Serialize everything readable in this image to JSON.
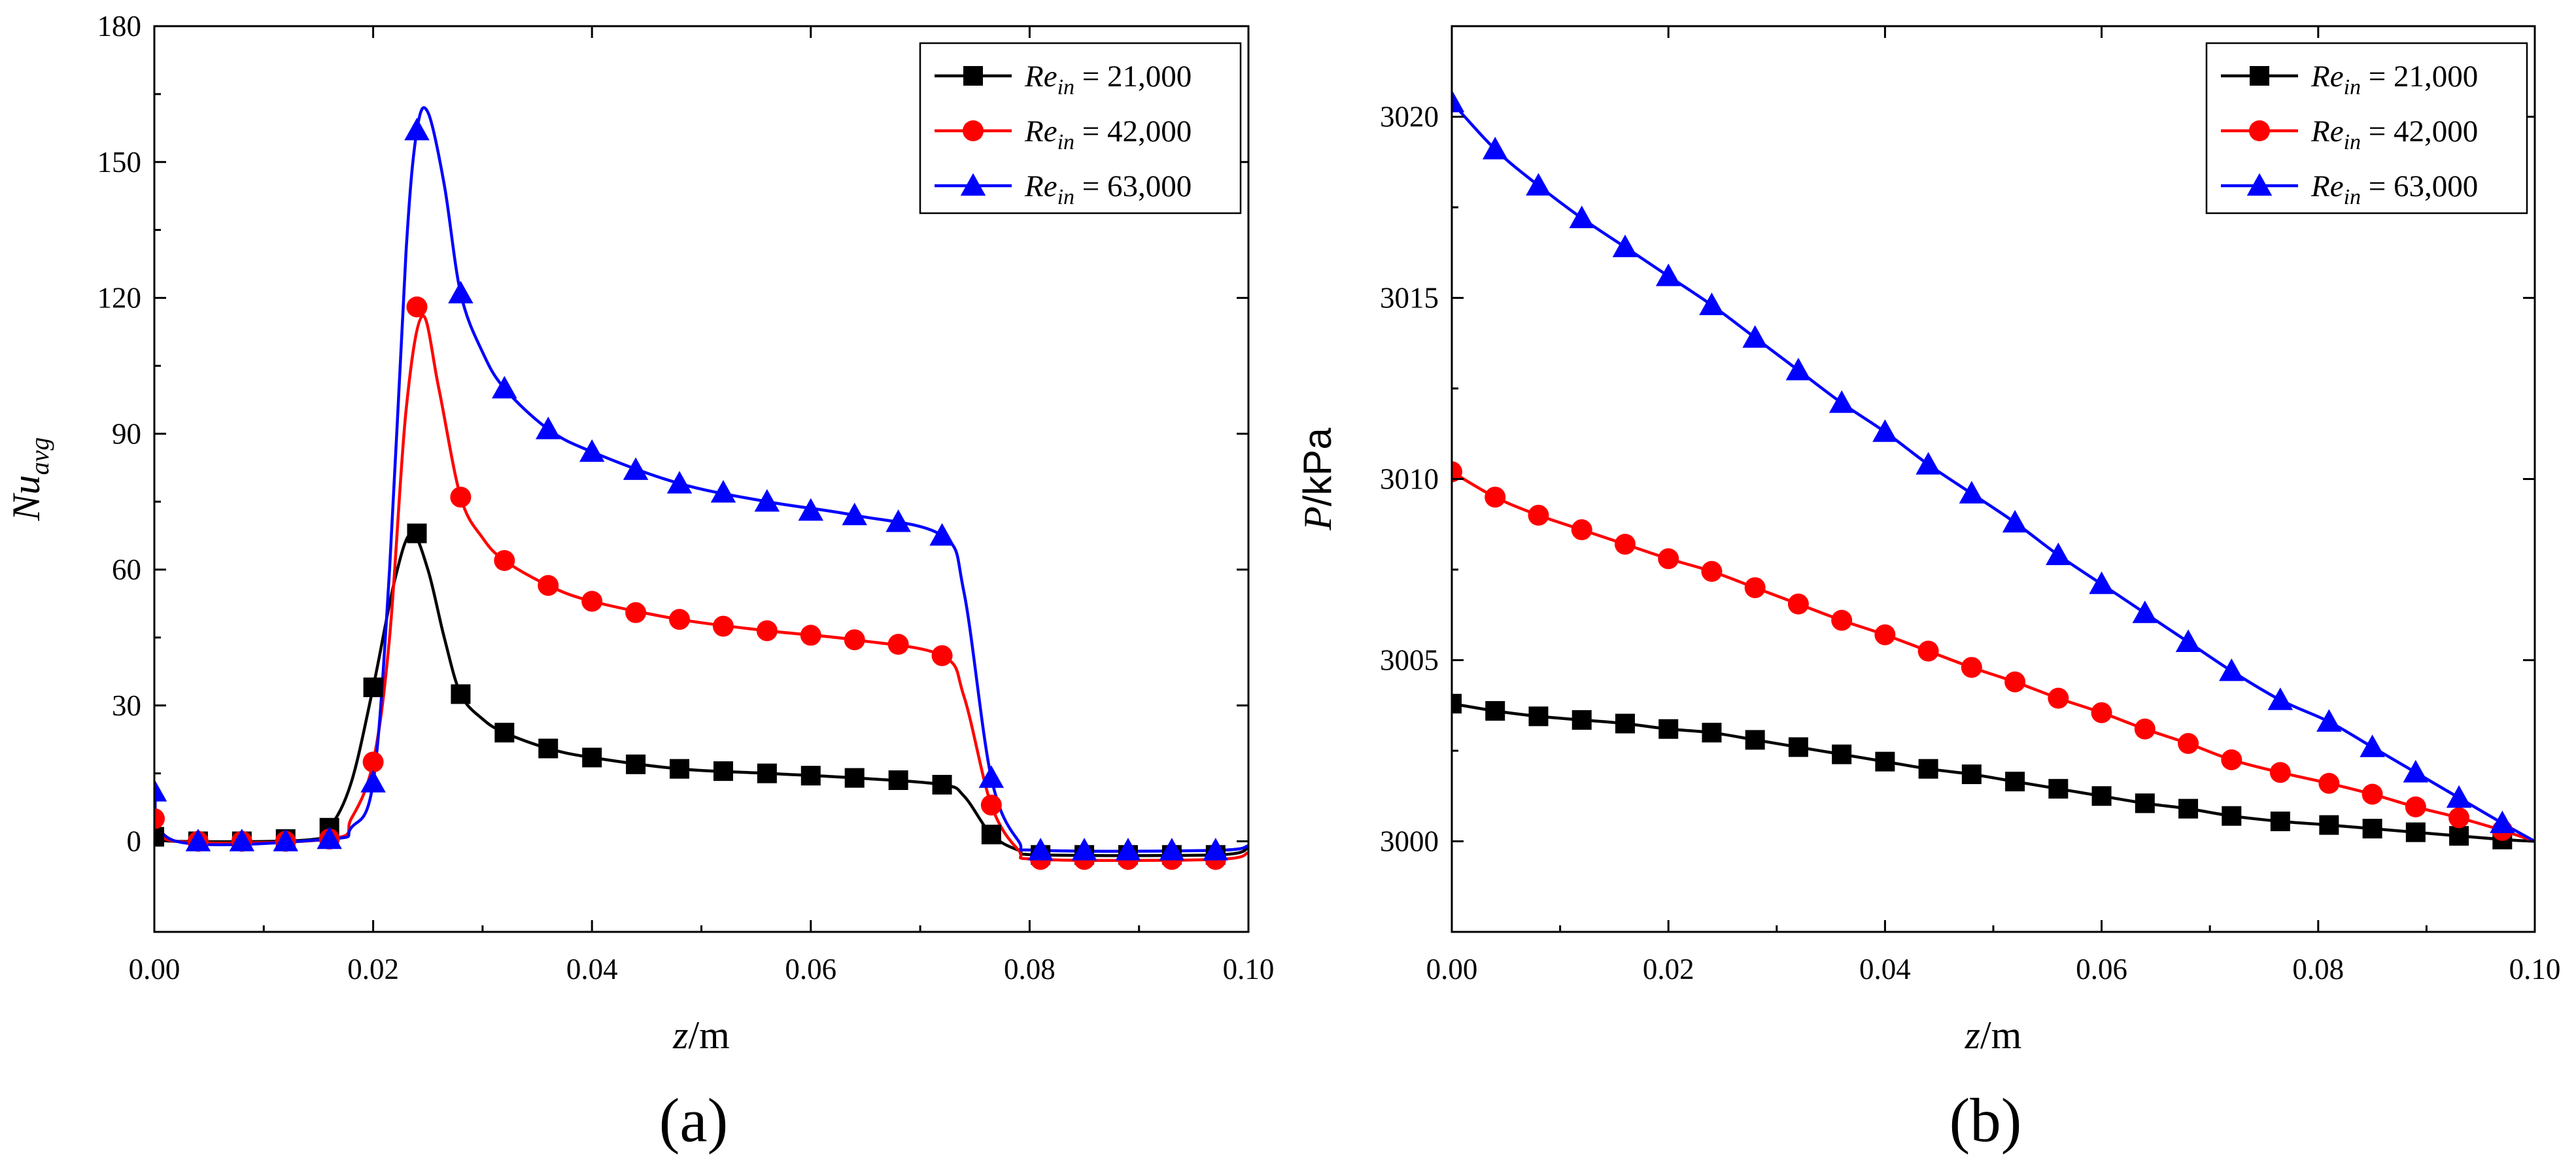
{
  "chart_data": [
    {
      "type": "line",
      "panel_label": "(a)",
      "xlabel": "z/m",
      "xlabel_parts": {
        "var": "z",
        "unit": "/m"
      },
      "ylabel": "Nu_avg",
      "ylabel_parts": {
        "main": "Nu",
        "sub": "avg"
      },
      "xlim": [
        0,
        0.1
      ],
      "ylim": [
        -20,
        180
      ],
      "xticks": [
        0,
        0.02,
        0.04,
        0.06,
        0.08,
        0.1
      ],
      "xtick_labels": [
        "0.00",
        "0.02",
        "0.04",
        "0.06",
        "0.08",
        "0.10"
      ],
      "yticks": [
        0,
        30,
        60,
        90,
        120,
        150,
        180
      ],
      "ytick_labels": [
        "0",
        "30",
        "60",
        "90",
        "120",
        "150",
        "180"
      ],
      "legend_position": "top-right",
      "series": [
        {
          "name": "Re_in = 21,000",
          "label_main": "Re",
          "label_sub": "in",
          "label_value": " = 21,000",
          "color": "#000000",
          "marker": "square",
          "x": [
            0.0,
            0.004,
            0.008,
            0.012,
            0.016,
            0.02,
            0.024,
            0.028,
            0.032,
            0.036,
            0.04,
            0.044,
            0.048,
            0.052,
            0.056,
            0.06,
            0.064,
            0.068,
            0.072,
            0.0765,
            0.081,
            0.085,
            0.089,
            0.093,
            0.097
          ],
          "y": [
            1,
            0,
            0,
            0.5,
            3,
            34,
            68,
            32.5,
            24,
            20.5,
            18.5,
            17,
            16,
            15.5,
            15,
            14.5,
            14,
            13.5,
            12.5,
            1.5,
            -3,
            -3,
            -3,
            -3,
            -3
          ],
          "curve": [
            [
              0,
              1
            ],
            [
              0.002,
              0
            ],
            [
              0.014,
              0.3
            ],
            [
              0.016,
              3
            ],
            [
              0.018,
              13
            ],
            [
              0.02,
              34
            ],
            [
              0.022,
              58
            ],
            [
              0.0235,
              68
            ],
            [
              0.025,
              60
            ],
            [
              0.0265,
              45
            ],
            [
              0.028,
              32.5
            ],
            [
              0.03,
              27
            ],
            [
              0.032,
              24
            ],
            [
              0.036,
              20.5
            ],
            [
              0.04,
              18.5
            ],
            [
              0.048,
              16
            ],
            [
              0.056,
              15
            ],
            [
              0.064,
              14
            ],
            [
              0.072,
              12.5
            ],
            [
              0.074,
              10
            ],
            [
              0.0765,
              1.5
            ],
            [
              0.079,
              -2
            ],
            [
              0.081,
              -3
            ],
            [
              0.097,
              -3
            ],
            [
              0.1,
              -1.5
            ]
          ]
        },
        {
          "name": "Re_in = 42,000",
          "label_main": "Re",
          "label_sub": "in",
          "label_value": " = 42,000",
          "color": "#ff0000",
          "marker": "circle",
          "x": [
            0.0,
            0.004,
            0.008,
            0.012,
            0.016,
            0.02,
            0.024,
            0.028,
            0.032,
            0.036,
            0.04,
            0.044,
            0.048,
            0.052,
            0.056,
            0.06,
            0.064,
            0.068,
            0.072,
            0.0765,
            0.081,
            0.085,
            0.089,
            0.093,
            0.097
          ],
          "y": [
            5,
            0,
            0,
            0,
            0.5,
            17.5,
            118,
            76,
            62,
            56.5,
            53,
            50.5,
            49,
            47.5,
            46.5,
            45.5,
            44.5,
            43.5,
            41,
            8,
            -4,
            -4,
            -4,
            -4,
            -4
          ],
          "curve": [
            [
              0,
              5
            ],
            [
              0.002,
              0
            ],
            [
              0.016,
              0.5
            ],
            [
              0.018,
              5
            ],
            [
              0.02,
              17.5
            ],
            [
              0.0215,
              45
            ],
            [
              0.023,
              95
            ],
            [
              0.0245,
              116
            ],
            [
              0.026,
              100
            ],
            [
              0.028,
              76
            ],
            [
              0.03,
              67
            ],
            [
              0.032,
              62
            ],
            [
              0.036,
              56.5
            ],
            [
              0.04,
              53
            ],
            [
              0.048,
              49
            ],
            [
              0.056,
              46.5
            ],
            [
              0.064,
              44.5
            ],
            [
              0.072,
              41
            ],
            [
              0.074,
              32
            ],
            [
              0.0765,
              8
            ],
            [
              0.079,
              -2
            ],
            [
              0.081,
              -4
            ],
            [
              0.097,
              -4
            ],
            [
              0.1,
              -2.5
            ]
          ]
        },
        {
          "name": "Re_in = 63,000",
          "label_main": "Re",
          "label_sub": "in",
          "label_value": " = 63,000",
          "color": "#0000ff",
          "marker": "triangle",
          "x": [
            0.0,
            0.004,
            0.008,
            0.012,
            0.016,
            0.02,
            0.024,
            0.028,
            0.032,
            0.036,
            0.04,
            0.044,
            0.048,
            0.052,
            0.056,
            0.06,
            0.064,
            0.068,
            0.072,
            0.0765,
            0.081,
            0.085,
            0.089,
            0.093,
            0.097
          ],
          "y": [
            11,
            0,
            0,
            0,
            0.5,
            13,
            157,
            121,
            100,
            91,
            86,
            82,
            79,
            77,
            75,
            73,
            72,
            70.5,
            67.5,
            14,
            -2,
            -2,
            -2,
            -2,
            -2
          ],
          "curve": [
            [
              0,
              11
            ],
            [
              0.002,
              0
            ],
            [
              0.016,
              0.5
            ],
            [
              0.018,
              3
            ],
            [
              0.02,
              13
            ],
            [
              0.0215,
              60
            ],
            [
              0.023,
              130
            ],
            [
              0.024,
              157
            ],
            [
              0.025,
              161
            ],
            [
              0.0265,
              145
            ],
            [
              0.028,
              121
            ],
            [
              0.03,
              108
            ],
            [
              0.032,
              100
            ],
            [
              0.036,
              91
            ],
            [
              0.04,
              86
            ],
            [
              0.048,
              79
            ],
            [
              0.056,
              75
            ],
            [
              0.064,
              72
            ],
            [
              0.072,
              67.5
            ],
            [
              0.074,
              55
            ],
            [
              0.0765,
              14
            ],
            [
              0.079,
              0
            ],
            [
              0.081,
              -2
            ],
            [
              0.097,
              -2
            ],
            [
              0.1,
              -1
            ]
          ]
        }
      ]
    },
    {
      "type": "line",
      "panel_label": "(b)",
      "xlabel": "z/m",
      "xlabel_parts": {
        "var": "z",
        "unit": "/m"
      },
      "ylabel": "P/kPa",
      "ylabel_parts": {
        "var": "P",
        "unit": "/kPa"
      },
      "xlim": [
        0,
        0.1
      ],
      "ylim": [
        2997.5,
        3022.5
      ],
      "xticks": [
        0,
        0.02,
        0.04,
        0.06,
        0.08,
        0.1
      ],
      "xtick_labels": [
        "0.00",
        "0.02",
        "0.04",
        "0.06",
        "0.08",
        "0.10"
      ],
      "yticks": [
        3000,
        3005,
        3010,
        3015,
        3020
      ],
      "ytick_labels": [
        "3000",
        "3005",
        "3010",
        "3015",
        "3020"
      ],
      "legend_position": "top-right",
      "series": [
        {
          "name": "Re_in = 21,000",
          "label_main": "Re",
          "label_sub": "in",
          "label_value": " = 21,000",
          "color": "#000000",
          "marker": "square",
          "x": [
            0.0,
            0.004,
            0.008,
            0.012,
            0.016,
            0.02,
            0.024,
            0.028,
            0.032,
            0.036,
            0.04,
            0.044,
            0.048,
            0.052,
            0.056,
            0.06,
            0.064,
            0.068,
            0.072,
            0.0765,
            0.081,
            0.085,
            0.089,
            0.093,
            0.097
          ],
          "y": [
            3003.8,
            3003.6,
            3003.45,
            3003.35,
            3003.25,
            3003.1,
            3003.0,
            3002.8,
            3002.6,
            3002.4,
            3002.2,
            3002.0,
            3001.85,
            3001.65,
            3001.45,
            3001.25,
            3001.05,
            3000.9,
            3000.7,
            3000.55,
            3000.45,
            3000.35,
            3000.25,
            3000.15,
            3000.05
          ],
          "curve": [
            [
              0,
              3003.8
            ],
            [
              0.004,
              3003.6
            ],
            [
              0.008,
              3003.45
            ],
            [
              0.012,
              3003.35
            ],
            [
              0.016,
              3003.25
            ],
            [
              0.02,
              3003.1
            ],
            [
              0.024,
              3003.0
            ],
            [
              0.028,
              3002.8
            ],
            [
              0.032,
              3002.6
            ],
            [
              0.036,
              3002.4
            ],
            [
              0.04,
              3002.2
            ],
            [
              0.044,
              3002.0
            ],
            [
              0.048,
              3001.85
            ],
            [
              0.052,
              3001.65
            ],
            [
              0.056,
              3001.45
            ],
            [
              0.06,
              3001.25
            ],
            [
              0.064,
              3001.05
            ],
            [
              0.068,
              3000.9
            ],
            [
              0.072,
              3000.7
            ],
            [
              0.0765,
              3000.55
            ],
            [
              0.081,
              3000.45
            ],
            [
              0.085,
              3000.35
            ],
            [
              0.089,
              3000.25
            ],
            [
              0.093,
              3000.15
            ],
            [
              0.097,
              3000.05
            ],
            [
              0.1,
              3000.0
            ]
          ]
        },
        {
          "name": "Re_in = 42,000",
          "label_main": "Re",
          "label_sub": "in",
          "label_value": " = 42,000",
          "color": "#ff0000",
          "marker": "circle",
          "x": [
            0.0,
            0.004,
            0.008,
            0.012,
            0.016,
            0.02,
            0.024,
            0.028,
            0.032,
            0.036,
            0.04,
            0.044,
            0.048,
            0.052,
            0.056,
            0.06,
            0.064,
            0.068,
            0.072,
            0.0765,
            0.081,
            0.085,
            0.089,
            0.093,
            0.097
          ],
          "y": [
            3010.2,
            3009.5,
            3009.0,
            3008.6,
            3008.2,
            3007.8,
            3007.45,
            3007.0,
            3006.55,
            3006.1,
            3005.7,
            3005.25,
            3004.8,
            3004.4,
            3003.95,
            3003.55,
            3003.1,
            3002.7,
            3002.25,
            3001.9,
            3001.6,
            3001.3,
            3000.95,
            3000.65,
            3000.3
          ],
          "curve": [
            [
              0,
              3010.2
            ],
            [
              0.004,
              3009.5
            ],
            [
              0.008,
              3009.0
            ],
            [
              0.012,
              3008.6
            ],
            [
              0.016,
              3008.2
            ],
            [
              0.02,
              3007.8
            ],
            [
              0.024,
              3007.45
            ],
            [
              0.028,
              3007.0
            ],
            [
              0.032,
              3006.55
            ],
            [
              0.036,
              3006.1
            ],
            [
              0.04,
              3005.7
            ],
            [
              0.044,
              3005.25
            ],
            [
              0.048,
              3004.8
            ],
            [
              0.052,
              3004.4
            ],
            [
              0.056,
              3003.95
            ],
            [
              0.06,
              3003.55
            ],
            [
              0.064,
              3003.1
            ],
            [
              0.068,
              3002.7
            ],
            [
              0.072,
              3002.25
            ],
            [
              0.0765,
              3001.9
            ],
            [
              0.081,
              3001.6
            ],
            [
              0.085,
              3001.3
            ],
            [
              0.089,
              3000.95
            ],
            [
              0.093,
              3000.65
            ],
            [
              0.097,
              3000.3
            ],
            [
              0.1,
              3000.0
            ]
          ]
        },
        {
          "name": "Re_in = 63,000",
          "label_main": "Re",
          "label_sub": "in",
          "label_value": " = 63,000",
          "color": "#0000ff",
          "marker": "triangle",
          "x": [
            0.0,
            0.004,
            0.008,
            0.012,
            0.016,
            0.02,
            0.024,
            0.028,
            0.032,
            0.036,
            0.04,
            0.044,
            0.048,
            0.052,
            0.056,
            0.06,
            0.064,
            0.068,
            0.072,
            0.0765,
            0.081,
            0.085,
            0.089,
            0.093,
            0.097
          ],
          "y": [
            3020.4,
            3019.1,
            3018.1,
            3017.2,
            3016.4,
            3015.6,
            3014.8,
            3013.9,
            3013.0,
            3012.1,
            3011.3,
            3010.4,
            3009.6,
            3008.8,
            3007.9,
            3007.1,
            3006.3,
            3005.5,
            3004.7,
            3003.9,
            3003.3,
            3002.6,
            3001.9,
            3001.2,
            3000.5
          ],
          "curve": [
            [
              0,
              3020.4
            ],
            [
              0.004,
              3019.1
            ],
            [
              0.008,
              3018.1
            ],
            [
              0.012,
              3017.2
            ],
            [
              0.016,
              3016.4
            ],
            [
              0.02,
              3015.6
            ],
            [
              0.024,
              3014.8
            ],
            [
              0.028,
              3013.9
            ],
            [
              0.032,
              3013.0
            ],
            [
              0.036,
              3012.1
            ],
            [
              0.04,
              3011.3
            ],
            [
              0.044,
              3010.4
            ],
            [
              0.048,
              3009.6
            ],
            [
              0.052,
              3008.8
            ],
            [
              0.056,
              3007.9
            ],
            [
              0.06,
              3007.1
            ],
            [
              0.064,
              3006.3
            ],
            [
              0.068,
              3005.5
            ],
            [
              0.072,
              3004.7
            ],
            [
              0.0765,
              3003.9
            ],
            [
              0.081,
              3003.3
            ],
            [
              0.085,
              3002.6
            ],
            [
              0.089,
              3001.9
            ],
            [
              0.093,
              3001.2
            ],
            [
              0.097,
              3000.5
            ],
            [
              0.1,
              3000.0
            ]
          ]
        }
      ]
    }
  ]
}
